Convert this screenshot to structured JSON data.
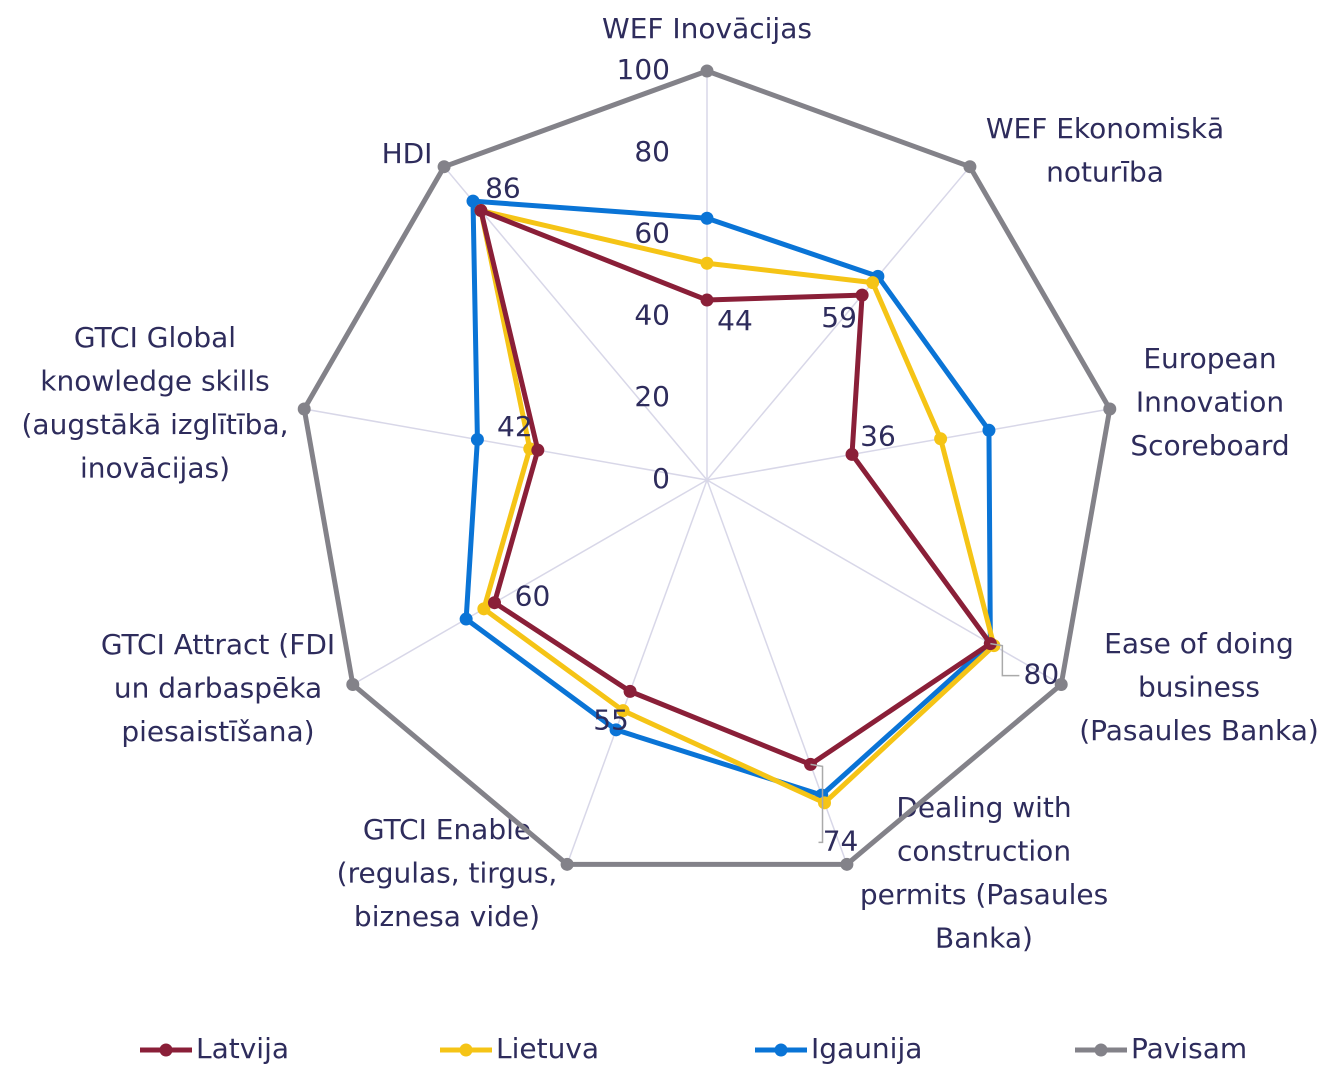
{
  "chart_data": {
    "type": "radar",
    "categories": [
      "WEF Inovācijas",
      "WEF Ekonomiskā\nnoturība",
      "European\nInnovation\nScoreboard",
      "Ease of doing\nbusiness\n(Pasaules Banka)",
      "Dealing with\nconstruction\npermits (Pasaules\nBanka)",
      "GTCI Enable\n(regulas, tirgus,\nbiznesa vide)",
      "GTCI Attract (FDI\nun darbaspēka\npiesaistīšana)",
      "GTCI Global\nknowledge skills\n(augstākā izglītība,\ninovācijas)",
      "HDI"
    ],
    "series": [
      {
        "name": "Latvija",
        "color": "#8a1f38",
        "values": [
          44,
          59,
          36,
          80,
          74,
          55,
          60,
          42,
          86
        ],
        "data_labels": true
      },
      {
        "name": "Lietuva",
        "color": "#f5c416",
        "values": [
          53,
          63,
          58,
          81,
          84,
          60,
          63,
          44,
          86
        ]
      },
      {
        "name": "Igaunija",
        "color": "#0a74d6",
        "values": [
          64,
          65,
          70,
          80,
          82,
          65,
          68,
          57,
          89
        ]
      },
      {
        "name": "Pavisam",
        "color": "#838289",
        "values": [
          100,
          100,
          100,
          100,
          100,
          100,
          100,
          100,
          100
        ]
      }
    ],
    "ylim": [
      0,
      100
    ],
    "yticks": [
      0,
      20,
      40,
      60,
      80,
      100
    ],
    "legend": "bottom"
  }
}
